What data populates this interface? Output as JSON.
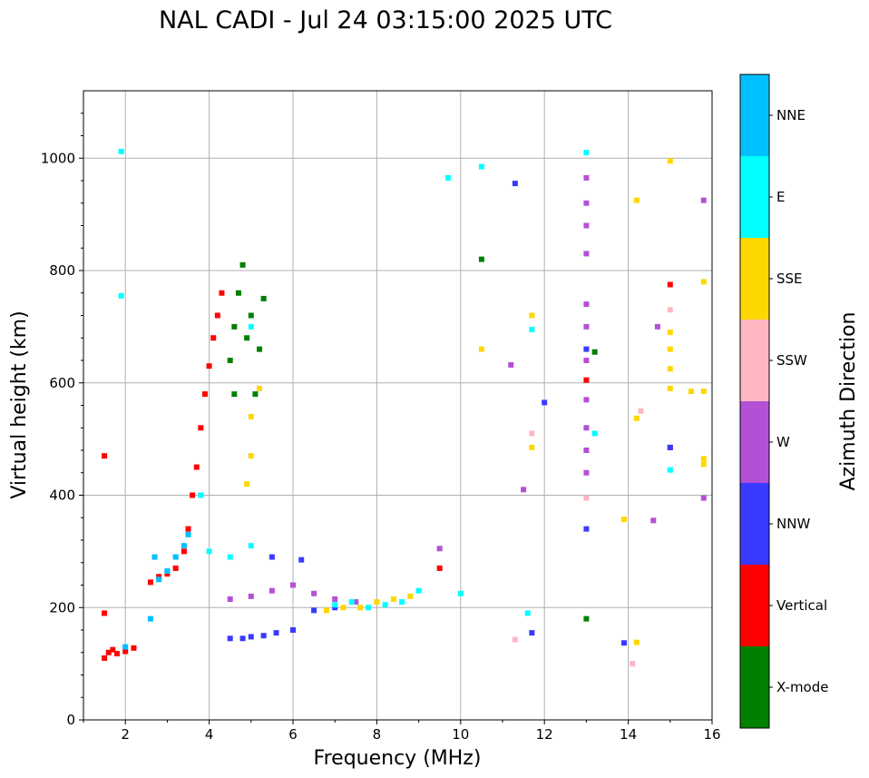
{
  "chart_data": {
    "type": "scatter",
    "title": "NAL CADI - Jul 24 03:15:00 2025 UTC",
    "xlabel": "Frequency (MHz)",
    "ylabel": "Virtual height (km)",
    "xlim": [
      1,
      16
    ],
    "ylim": [
      0,
      1120
    ],
    "xticks": [
      2,
      4,
      6,
      8,
      10,
      12,
      14,
      16
    ],
    "yticks": [
      0,
      200,
      400,
      600,
      800,
      1000
    ],
    "grid": true,
    "colorbar": {
      "label": "Azimuth Direction",
      "categories": [
        {
          "name": "X-mode",
          "color": "#008000"
        },
        {
          "name": "Vertical",
          "color": "#ff0000"
        },
        {
          "name": "NNW",
          "color": "#3a3aff"
        },
        {
          "name": "W",
          "color": "#b450d6"
        },
        {
          "name": "SSW",
          "color": "#ffb6c1"
        },
        {
          "name": "SSE",
          "color": "#ffd700"
        },
        {
          "name": "E",
          "color": "#00ffff"
        },
        {
          "name": "NNE",
          "color": "#00bfff"
        }
      ]
    },
    "traces": [
      {
        "category": "Vertical",
        "points": [
          [
            1.5,
            110
          ],
          [
            1.6,
            120
          ],
          [
            1.7,
            125
          ],
          [
            1.8,
            118
          ],
          [
            2.0,
            122
          ],
          [
            2.2,
            128
          ],
          [
            2.6,
            245
          ],
          [
            2.8,
            255
          ],
          [
            3.0,
            260
          ],
          [
            3.2,
            270
          ],
          [
            3.4,
            300
          ],
          [
            3.5,
            340
          ],
          [
            3.6,
            400
          ],
          [
            3.7,
            450
          ],
          [
            3.8,
            520
          ],
          [
            3.9,
            580
          ],
          [
            4.0,
            630
          ],
          [
            4.1,
            680
          ],
          [
            4.2,
            720
          ],
          [
            4.3,
            760
          ],
          [
            1.5,
            190
          ],
          [
            1.5,
            470
          ],
          [
            13.0,
            605
          ],
          [
            15.0,
            485
          ],
          [
            15.0,
            775
          ],
          [
            9.5,
            270
          ]
        ]
      },
      {
        "category": "X-mode",
        "points": [
          [
            4.5,
            640
          ],
          [
            4.6,
            700
          ],
          [
            4.7,
            760
          ],
          [
            4.8,
            810
          ],
          [
            4.9,
            680
          ],
          [
            5.0,
            720
          ],
          [
            5.1,
            580
          ],
          [
            5.2,
            660
          ],
          [
            5.3,
            750
          ],
          [
            4.6,
            580
          ],
          [
            10.5,
            820
          ],
          [
            13.2,
            655
          ],
          [
            13.0,
            180
          ]
        ]
      },
      {
        "category": "NNW",
        "points": [
          [
            4.5,
            145
          ],
          [
            4.8,
            145
          ],
          [
            5.0,
            148
          ],
          [
            5.3,
            150
          ],
          [
            5.6,
            155
          ],
          [
            6.0,
            160
          ],
          [
            5.5,
            290
          ],
          [
            6.2,
            285
          ],
          [
            6.5,
            195
          ],
          [
            7.0,
            200
          ],
          [
            13.0,
            660
          ],
          [
            13.0,
            340
          ],
          [
            13.9,
            137
          ],
          [
            11.3,
            955
          ],
          [
            12.0,
            565
          ],
          [
            11.7,
            155
          ],
          [
            15.0,
            485
          ]
        ]
      },
      {
        "category": "W",
        "points": [
          [
            4.5,
            215
          ],
          [
            5.0,
            220
          ],
          [
            5.5,
            230
          ],
          [
            6.0,
            240
          ],
          [
            6.5,
            225
          ],
          [
            7.0,
            215
          ],
          [
            7.5,
            210
          ],
          [
            13.0,
            965
          ],
          [
            13.0,
            920
          ],
          [
            13.0,
            880
          ],
          [
            13.0,
            830
          ],
          [
            13.0,
            740
          ],
          [
            13.0,
            700
          ],
          [
            13.0,
            640
          ],
          [
            13.0,
            570
          ],
          [
            13.0,
            520
          ],
          [
            13.0,
            480
          ],
          [
            13.0,
            440
          ],
          [
            11.5,
            410
          ],
          [
            14.6,
            355
          ],
          [
            15.8,
            395
          ],
          [
            15.8,
            925
          ],
          [
            9.5,
            305
          ],
          [
            14.7,
            700
          ],
          [
            11.2,
            632
          ]
        ]
      },
      {
        "category": "SSW",
        "points": [
          [
            13.0,
            395
          ],
          [
            14.3,
            550
          ],
          [
            15.0,
            730
          ],
          [
            11.7,
            510
          ],
          [
            11.3,
            143
          ],
          [
            14.1,
            100
          ]
        ]
      },
      {
        "category": "SSE",
        "points": [
          [
            6.8,
            195
          ],
          [
            7.2,
            200
          ],
          [
            7.6,
            200
          ],
          [
            8.0,
            210
          ],
          [
            8.4,
            215
          ],
          [
            8.8,
            220
          ],
          [
            4.9,
            420
          ],
          [
            5.0,
            470
          ],
          [
            5.0,
            540
          ],
          [
            5.2,
            590
          ],
          [
            15.0,
            690
          ],
          [
            15.0,
            660
          ],
          [
            15.0,
            625
          ],
          [
            15.0,
            590
          ],
          [
            15.5,
            585
          ],
          [
            15.8,
            585
          ],
          [
            15.8,
            465
          ],
          [
            15.8,
            455
          ],
          [
            15.8,
            780
          ],
          [
            15.0,
            995
          ],
          [
            14.2,
            925
          ],
          [
            14.2,
            537
          ],
          [
            13.9,
            357
          ],
          [
            14.2,
            138
          ],
          [
            11.7,
            485
          ],
          [
            11.7,
            720
          ],
          [
            10.5,
            660
          ]
        ]
      },
      {
        "category": "E",
        "points": [
          [
            7.0,
            205
          ],
          [
            7.4,
            210
          ],
          [
            7.8,
            200
          ],
          [
            8.2,
            205
          ],
          [
            8.6,
            210
          ],
          [
            9.0,
            230
          ],
          [
            3.8,
            400
          ],
          [
            4.0,
            300
          ],
          [
            4.5,
            290
          ],
          [
            5.0,
            310
          ],
          [
            5.0,
            700
          ],
          [
            1.9,
            1012
          ],
          [
            1.9,
            755
          ],
          [
            9.7,
            965
          ],
          [
            10.5,
            985
          ],
          [
            10.0,
            225
          ],
          [
            13.0,
            1010
          ],
          [
            13.2,
            510
          ],
          [
            11.7,
            695
          ],
          [
            11.6,
            190
          ],
          [
            15.0,
            445
          ]
        ]
      },
      {
        "category": "NNE",
        "points": [
          [
            2.8,
            250
          ],
          [
            3.0,
            265
          ],
          [
            3.2,
            290
          ],
          [
            3.4,
            310
          ],
          [
            3.5,
            330
          ],
          [
            2.6,
            180
          ],
          [
            2.7,
            290
          ],
          [
            2.0,
            130
          ]
        ]
      }
    ]
  }
}
